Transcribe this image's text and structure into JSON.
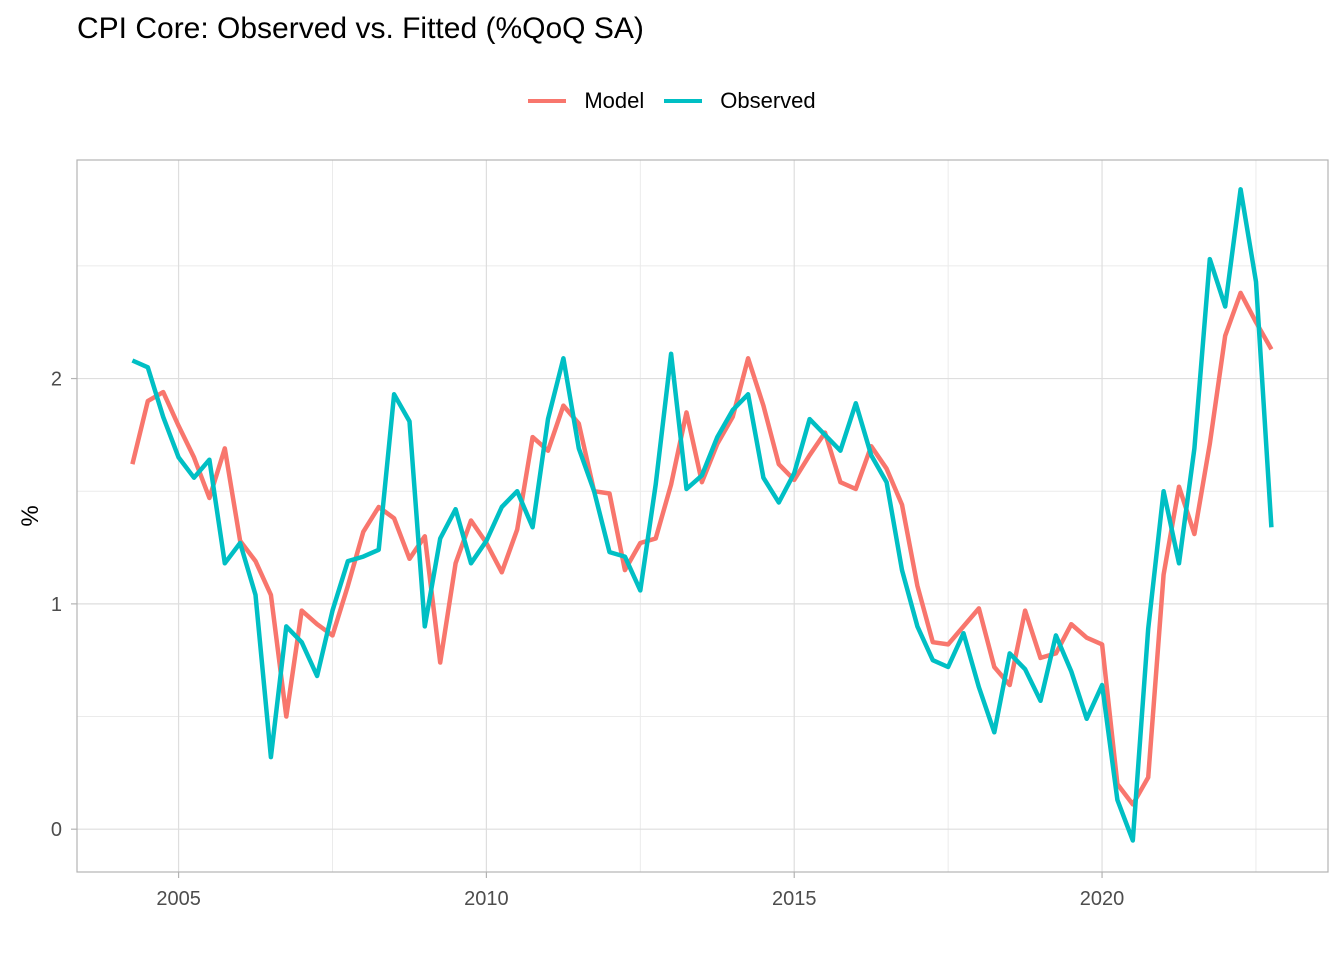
{
  "chart_data": {
    "type": "line",
    "title": "CPI Core: Observed vs. Fitted (%QoQ SA)",
    "xlabel": "",
    "ylabel": "%",
    "x_ticks": [
      2005,
      2010,
      2015,
      2020
    ],
    "y_ticks": [
      0,
      1,
      2
    ],
    "xlim": [
      2003.35,
      2023.67
    ],
    "ylim": [
      -0.19,
      2.97
    ],
    "grid": true,
    "legend_position": "top",
    "x": [
      2004.25,
      2004.5,
      2004.75,
      2005.0,
      2005.25,
      2005.5,
      2005.75,
      2006.0,
      2006.25,
      2006.5,
      2006.75,
      2007.0,
      2007.25,
      2007.5,
      2007.75,
      2008.0,
      2008.25,
      2008.5,
      2008.75,
      2009.0,
      2009.25,
      2009.5,
      2009.75,
      2010.0,
      2010.25,
      2010.5,
      2010.75,
      2011.0,
      2011.25,
      2011.5,
      2011.75,
      2012.0,
      2012.25,
      2012.5,
      2012.75,
      2013.0,
      2013.25,
      2013.5,
      2013.75,
      2014.0,
      2014.25,
      2014.5,
      2014.75,
      2015.0,
      2015.25,
      2015.5,
      2015.75,
      2016.0,
      2016.25,
      2016.5,
      2016.75,
      2017.0,
      2017.25,
      2017.5,
      2017.75,
      2018.0,
      2018.25,
      2018.5,
      2018.75,
      2019.0,
      2019.25,
      2019.5,
      2019.75,
      2020.0,
      2020.25,
      2020.5,
      2020.75,
      2021.0,
      2021.25,
      2021.5,
      2021.75,
      2022.0,
      2022.25,
      2022.5,
      2022.75
    ],
    "series": [
      {
        "name": "Model",
        "color": "#F8766D",
        "values": [
          1.62,
          1.9,
          1.94,
          1.79,
          1.65,
          1.47,
          1.69,
          1.28,
          1.19,
          1.04,
          0.5,
          0.97,
          0.91,
          0.86,
          1.08,
          1.32,
          1.43,
          1.38,
          1.2,
          1.3,
          0.74,
          1.18,
          1.37,
          1.27,
          1.14,
          1.33,
          1.74,
          1.68,
          1.88,
          1.8,
          1.5,
          1.49,
          1.15,
          1.27,
          1.29,
          1.53,
          1.85,
          1.54,
          1.71,
          1.83,
          2.09,
          1.88,
          1.62,
          1.55,
          1.66,
          1.76,
          1.54,
          1.51,
          1.7,
          1.6,
          1.44,
          1.08,
          0.83,
          0.82,
          0.9,
          0.98,
          0.72,
          0.64,
          0.97,
          0.76,
          0.78,
          0.91,
          0.85,
          0.82,
          0.2,
          0.11,
          0.23,
          1.13,
          1.52,
          1.31,
          1.71,
          2.19,
          2.38,
          2.25,
          2.13
        ]
      },
      {
        "name": "Observed",
        "color": "#00BFC4",
        "values": [
          2.08,
          2.05,
          1.83,
          1.65,
          1.56,
          1.64,
          1.18,
          1.27,
          1.04,
          0.32,
          0.9,
          0.83,
          0.68,
          0.97,
          1.19,
          1.21,
          1.24,
          1.93,
          1.81,
          0.9,
          1.29,
          1.42,
          1.18,
          1.28,
          1.43,
          1.5,
          1.34,
          1.82,
          2.09,
          1.69,
          1.5,
          1.23,
          1.21,
          1.06,
          1.53,
          2.11,
          1.51,
          1.57,
          1.74,
          1.86,
          1.93,
          1.56,
          1.45,
          1.58,
          1.82,
          1.75,
          1.68,
          1.89,
          1.66,
          1.54,
          1.15,
          0.9,
          0.75,
          0.72,
          0.87,
          0.63,
          0.43,
          0.78,
          0.71,
          0.57,
          0.86,
          0.7,
          0.49,
          0.64,
          0.13,
          -0.05,
          0.89,
          1.5,
          1.18,
          1.69,
          2.53,
          2.32,
          2.84,
          2.43,
          1.34
        ]
      }
    ]
  }
}
